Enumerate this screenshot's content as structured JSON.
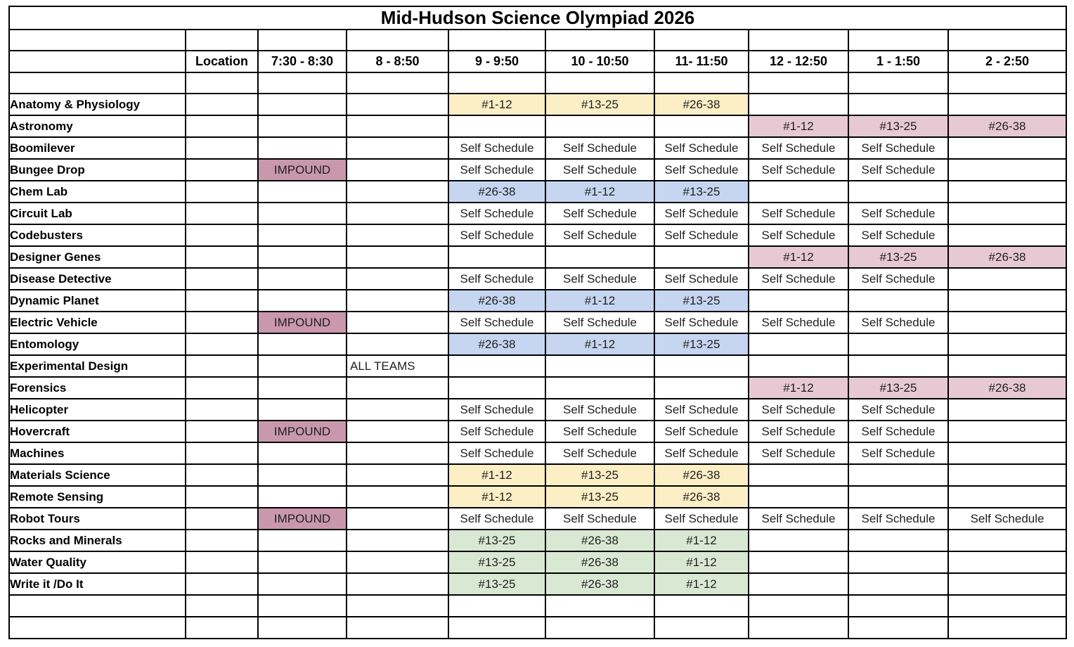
{
  "title": "Mid-Hudson Science Olympiad  2026",
  "colors": {
    "yellow": "#FCEEC5",
    "blue": "#C6D6F1",
    "green": "#D9E8D2",
    "pink": "#E7C9D4",
    "impound": "#C998AD"
  },
  "table": {
    "columns": [
      "",
      "Location",
      "7:30 - 8:30",
      "8 - 8:50",
      "9 - 9:50",
      "10 - 10:50",
      "11- 11:50",
      "12 - 12:50",
      "1 - 1:50",
      "2 - 2:50"
    ],
    "rows": [
      {
        "event": "Anatomy & Physiology",
        "cells": [
          null,
          null,
          [
            "#1-12",
            "yellow"
          ],
          [
            "#13-25",
            "yellow"
          ],
          [
            "#26-38",
            "yellow"
          ],
          null,
          null,
          null
        ]
      },
      {
        "event": "Astronomy",
        "cells": [
          null,
          null,
          null,
          null,
          null,
          [
            "#1-12",
            "pink"
          ],
          [
            "#13-25",
            "pink"
          ],
          [
            "#26-38",
            "pink"
          ]
        ]
      },
      {
        "event": "Boomilever",
        "cells": [
          null,
          null,
          [
            "Self Schedule",
            null
          ],
          [
            "Self Schedule",
            null
          ],
          [
            "Self Schedule",
            null
          ],
          [
            "Self Schedule",
            null
          ],
          [
            "Self Schedule",
            null
          ],
          null
        ]
      },
      {
        "event": "Bungee Drop",
        "cells": [
          [
            "IMPOUND",
            "impound"
          ],
          null,
          [
            "Self Schedule",
            null
          ],
          [
            "Self Schedule",
            null
          ],
          [
            "Self Schedule",
            null
          ],
          [
            "Self Schedule",
            null
          ],
          [
            "Self Schedule",
            null
          ],
          null
        ]
      },
      {
        "event": "Chem Lab",
        "cells": [
          null,
          null,
          [
            "#26-38",
            "blue"
          ],
          [
            "#1-12",
            "blue"
          ],
          [
            "#13-25",
            "blue"
          ],
          null,
          null,
          null
        ]
      },
      {
        "event": "Circuit Lab",
        "cells": [
          null,
          null,
          [
            "Self Schedule",
            null
          ],
          [
            "Self Schedule",
            null
          ],
          [
            "Self Schedule",
            null
          ],
          [
            "Self Schedule",
            null
          ],
          [
            "Self Schedule",
            null
          ],
          null
        ]
      },
      {
        "event": "Codebusters",
        "cells": [
          null,
          null,
          [
            "Self Schedule",
            null
          ],
          [
            "Self Schedule",
            null
          ],
          [
            "Self Schedule",
            null
          ],
          [
            "Self Schedule",
            null
          ],
          [
            "Self Schedule",
            null
          ],
          null
        ]
      },
      {
        "event": "Designer Genes",
        "cells": [
          null,
          null,
          null,
          null,
          null,
          [
            "#1-12",
            "pink"
          ],
          [
            "#13-25",
            "pink"
          ],
          [
            "#26-38",
            "pink"
          ]
        ]
      },
      {
        "event": "Disease Detective",
        "cells": [
          null,
          null,
          [
            "Self Schedule",
            null
          ],
          [
            "Self Schedule",
            null
          ],
          [
            "Self Schedule",
            null
          ],
          [
            "Self Schedule",
            null
          ],
          [
            "Self Schedule",
            null
          ],
          null
        ]
      },
      {
        "event": "Dynamic Planet",
        "cells": [
          null,
          null,
          [
            "#26-38",
            "blue"
          ],
          [
            "#1-12",
            "blue"
          ],
          [
            "#13-25",
            "blue"
          ],
          null,
          null,
          null
        ]
      },
      {
        "event": "Electric Vehicle",
        "cells": [
          [
            "IMPOUND",
            "impound"
          ],
          null,
          [
            "Self Schedule",
            null
          ],
          [
            "Self Schedule",
            null
          ],
          [
            "Self Schedule",
            null
          ],
          [
            "Self Schedule",
            null
          ],
          [
            "Self Schedule",
            null
          ],
          null
        ]
      },
      {
        "event": "Entomology",
        "cells": [
          null,
          null,
          [
            "#26-38",
            "blue"
          ],
          [
            "#1-12",
            "blue"
          ],
          [
            "#13-25",
            "blue"
          ],
          null,
          null,
          null
        ]
      },
      {
        "event": "Experimental Design",
        "cells": [
          null,
          [
            "ALL TEAMS",
            null,
            "left"
          ],
          null,
          null,
          null,
          null,
          null,
          null
        ]
      },
      {
        "event": "Forensics",
        "cells": [
          null,
          null,
          null,
          null,
          null,
          [
            "#1-12",
            "pink"
          ],
          [
            "#13-25",
            "pink"
          ],
          [
            "#26-38",
            "pink"
          ]
        ]
      },
      {
        "event": "Helicopter",
        "cells": [
          null,
          null,
          [
            "Self Schedule",
            null
          ],
          [
            "Self Schedule",
            null
          ],
          [
            "Self Schedule",
            null
          ],
          [
            "Self Schedule",
            null
          ],
          [
            "Self Schedule",
            null
          ],
          null
        ]
      },
      {
        "event": "Hovercraft",
        "cells": [
          [
            "IMPOUND",
            "impound"
          ],
          null,
          [
            "Self Schedule",
            null
          ],
          [
            "Self Schedule",
            null
          ],
          [
            "Self Schedule",
            null
          ],
          [
            "Self Schedule",
            null
          ],
          [
            "Self Schedule",
            null
          ],
          null
        ]
      },
      {
        "event": "Machines",
        "cells": [
          null,
          null,
          [
            "Self Schedule",
            null
          ],
          [
            "Self Schedule",
            null
          ],
          [
            "Self Schedule",
            null
          ],
          [
            "Self Schedule",
            null
          ],
          [
            "Self Schedule",
            null
          ],
          null
        ]
      },
      {
        "event": "Materials Science",
        "cells": [
          null,
          null,
          [
            "#1-12",
            "yellow"
          ],
          [
            "#13-25",
            "yellow"
          ],
          [
            "#26-38",
            "yellow"
          ],
          null,
          null,
          null
        ]
      },
      {
        "event": "Remote Sensing",
        "cells": [
          null,
          null,
          [
            "#1-12",
            "yellow"
          ],
          [
            "#13-25",
            "yellow"
          ],
          [
            "#26-38",
            "yellow"
          ],
          null,
          null,
          null
        ]
      },
      {
        "event": "Robot Tours",
        "cells": [
          [
            "IMPOUND",
            "impound"
          ],
          null,
          [
            "Self Schedule",
            null
          ],
          [
            "Self Schedule",
            null
          ],
          [
            "Self Schedule",
            null
          ],
          [
            "Self Schedule",
            null
          ],
          [
            "Self Schedule",
            null
          ],
          [
            "Self Schedule",
            null
          ]
        ]
      },
      {
        "event": "Rocks and Minerals",
        "cells": [
          null,
          null,
          [
            "#13-25",
            "green"
          ],
          [
            "#26-38",
            "green"
          ],
          [
            "#1-12",
            "green"
          ],
          null,
          null,
          null
        ]
      },
      {
        "event": "Water Quality",
        "cells": [
          null,
          null,
          [
            "#13-25",
            "green"
          ],
          [
            "#26-38",
            "green"
          ],
          [
            "#1-12",
            "green"
          ],
          null,
          null,
          null
        ]
      },
      {
        "event": "Write it /Do It",
        "cells": [
          null,
          null,
          [
            "#13-25",
            "green"
          ],
          [
            "#26-38",
            "green"
          ],
          [
            "#1-12",
            "green"
          ],
          null,
          null,
          null
        ]
      }
    ],
    "trailing_empty_rows": 2
  }
}
